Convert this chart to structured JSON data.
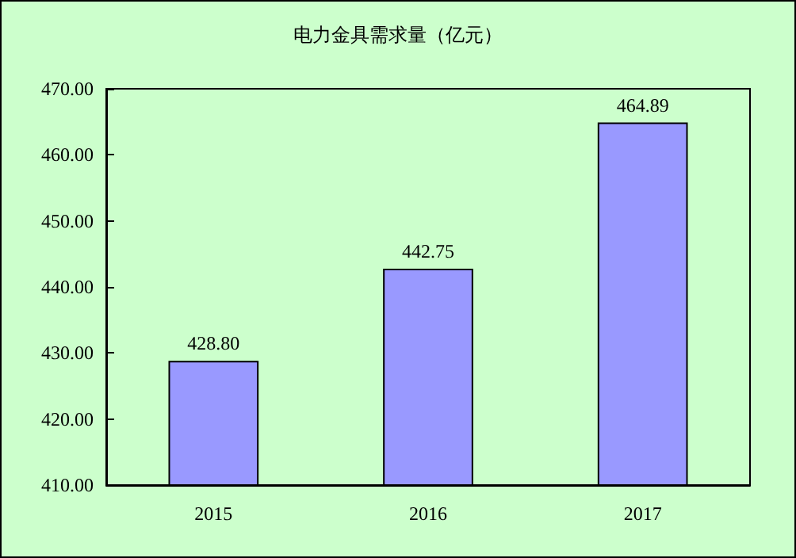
{
  "chart_data": {
    "type": "bar",
    "title": "电力金具需求量（亿元）",
    "categories": [
      "2015",
      "2016",
      "2017"
    ],
    "color": "#9999ff",
    "values": [
      428.8,
      442.75,
      464.89
    ],
    "value_labels": [
      "428.80",
      "442.75",
      "464.89"
    ],
    "ylim": [
      410,
      470
    ],
    "yticks": [
      {
        "value": 410,
        "label": "410.00"
      },
      {
        "value": 420,
        "label": "420.00"
      },
      {
        "value": 430,
        "label": "430.00"
      },
      {
        "value": 440,
        "label": "440.00"
      },
      {
        "value": 450,
        "label": "450.00"
      },
      {
        "value": 460,
        "label": "460.00"
      },
      {
        "value": 470,
        "label": "470.00"
      }
    ],
    "grid": false
  }
}
